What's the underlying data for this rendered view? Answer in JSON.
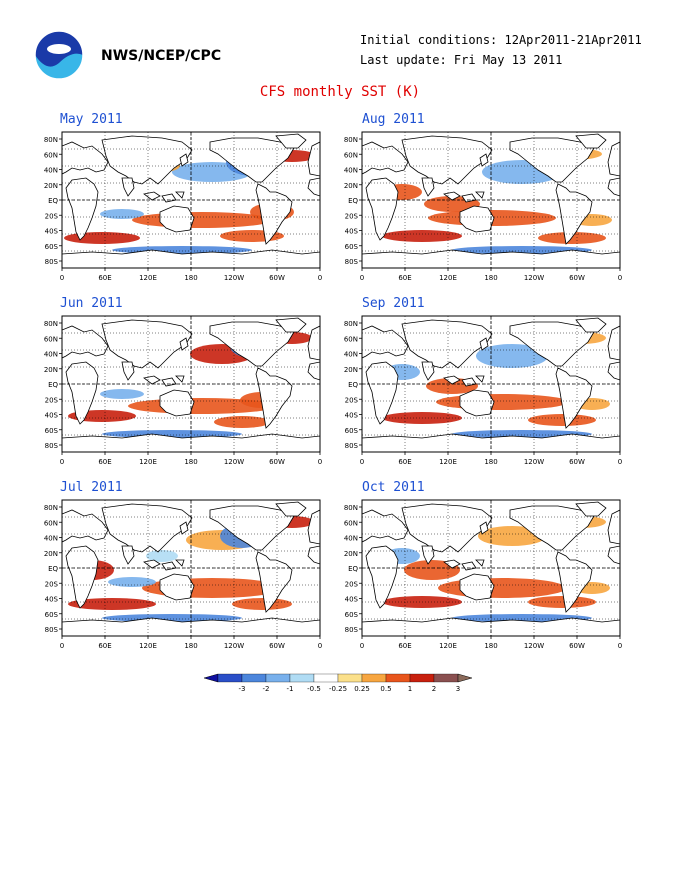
{
  "header": {
    "agency": "NWS/NCEP/CPC",
    "initial_conditions": "Initial conditions: 12Apr2011-21Apr2011",
    "last_update": "Last update: Fri May 13 2011"
  },
  "title": "CFS monthly SST (K)",
  "axes": {
    "lat_labels": [
      "80N",
      "60N",
      "40N",
      "20N",
      "EQ",
      "20S",
      "40S",
      "60S",
      "80S"
    ],
    "lon_labels": [
      "0",
      "60E",
      "120E",
      "180",
      "120W",
      "60W",
      "0"
    ]
  },
  "panels": [
    {
      "month": "May 2011"
    },
    {
      "month": "Aug 2011"
    },
    {
      "month": "Jun 2011"
    },
    {
      "month": "Sep 2011"
    },
    {
      "month": "Jul 2011"
    },
    {
      "month": "Oct 2011"
    }
  ],
  "colorbar": {
    "labels": [
      "-3",
      "-2",
      "-1",
      "-0.5",
      "-0.25",
      "0.25",
      "0.5",
      "1",
      "2",
      "3"
    ],
    "colors": [
      "#2a4fc8",
      "#4c86dc",
      "#78b0ec",
      "#b0dcf4",
      "#ffffff",
      "#fbe08a",
      "#f7a640",
      "#e8551c",
      "#c8200e",
      "#8a5050"
    ],
    "end_colors": [
      "#1010a0",
      "#8b6a5a"
    ]
  }
}
